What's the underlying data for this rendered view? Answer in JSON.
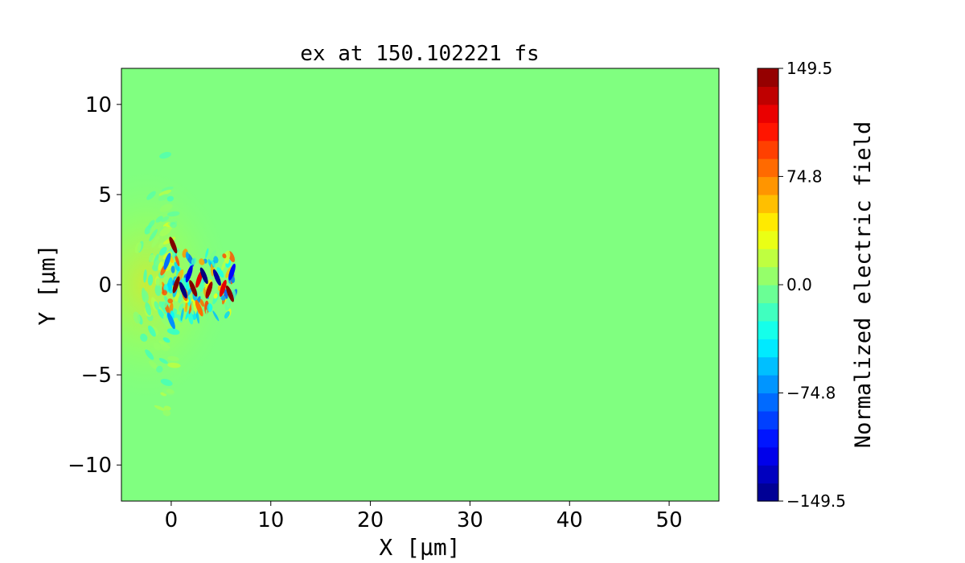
{
  "chart_data": {
    "type": "heatmap",
    "title": "ex at 150.102221 fs",
    "xlabel": "X [μm]",
    "ylabel": "Y [μm]",
    "xlim": [
      -5,
      55
    ],
    "ylim": [
      -12,
      12
    ],
    "x_ticks": [
      0,
      10,
      20,
      30,
      40,
      50
    ],
    "x_tick_labels": [
      "0",
      "10",
      "20",
      "30",
      "40",
      "50"
    ],
    "y_ticks": [
      -10,
      -5,
      0,
      5,
      10
    ],
    "y_tick_labels": [
      "−10",
      "−5",
      "0",
      "5",
      "10"
    ],
    "grid": false,
    "colormap": "jet",
    "colorbar": {
      "label": "Normalized electric field",
      "min": -149.5,
      "max": 149.5,
      "ticks": [
        -149.5,
        -74.8,
        0.0,
        74.8,
        149.5
      ],
      "tick_labels": [
        "−149.5",
        "−74.8",
        "0.0",
        "74.8",
        "149.5"
      ],
      "levels": 24
    },
    "background_value": 0.0,
    "field_features": [
      {
        "x": 0.2,
        "y": 2.2,
        "value": 149.5
      },
      {
        "x": 0.5,
        "y": 0.0,
        "value": 149.5
      },
      {
        "x": 1.2,
        "y": -0.3,
        "value": -149.5
      },
      {
        "x": 1.8,
        "y": 0.6,
        "value": -120
      },
      {
        "x": 2.2,
        "y": -0.2,
        "value": 149.5
      },
      {
        "x": 2.8,
        "y": 0.3,
        "value": 120
      },
      {
        "x": 3.3,
        "y": 0.5,
        "value": -149.5
      },
      {
        "x": 3.8,
        "y": -0.3,
        "value": 140
      },
      {
        "x": 4.6,
        "y": 0.4,
        "value": -140
      },
      {
        "x": 5.2,
        "y": -0.2,
        "value": 120
      },
      {
        "x": 5.9,
        "y": -0.5,
        "value": 149.5
      },
      {
        "x": 6.1,
        "y": 0.7,
        "value": -110
      },
      {
        "x": 0.0,
        "y": -2.0,
        "value": -70
      },
      {
        "x": -0.4,
        "y": 1.3,
        "value": -80
      },
      {
        "x": 2.8,
        "y": -1.3,
        "value": 80
      }
    ]
  }
}
